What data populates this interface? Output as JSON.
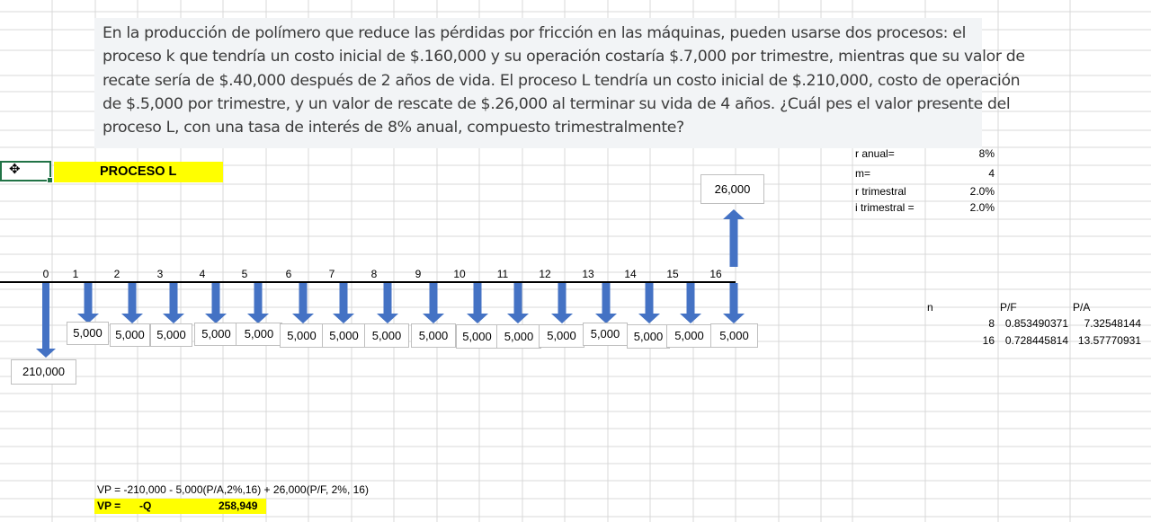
{
  "problem_lines": [
    "En la producción de polímero que reduce las pérdidas por fricción en las máquinas, pueden usarse dos procesos: el",
    "proceso k que tendría un costo inicial de $.160,000 y su operación costaría $.7,000 por trimestre, mientras que su valor de",
    "recate sería de $.40,000 después de 2 años de vida.  El proceso L tendría un costo inicial de $.210,000, costo de operación",
    "de $.5,000 por trimestre, y un valor de rescate de $.26,000 al terminar su vida de 4 años.  ¿Cuál pes el valor presente del",
    "proceso L, con una tasa de interés de 8% anual, compuesto trimestralmente?"
  ],
  "title": "PROCESO L",
  "cursor_glyph": "✥",
  "params": [
    {
      "label": "r anual=",
      "value": "8%"
    },
    {
      "label": "m=",
      "value": "4"
    },
    {
      "label": "r trimestral",
      "value": "2.0%"
    },
    {
      "label": "i trimestral  =",
      "value": "2.0%"
    }
  ],
  "factor_table": {
    "headers": [
      "n",
      "P/F",
      "P/A"
    ],
    "rows": [
      [
        "8",
        "0.853490371",
        "7.32548144"
      ],
      [
        "16",
        "0.728445814",
        "13.57770931"
      ]
    ]
  },
  "periods": [
    "0",
    "1",
    "2",
    "3",
    "4",
    "5",
    "6",
    "7",
    "8",
    "9",
    "10",
    "11",
    "12",
    "13",
    "14",
    "15",
    "16"
  ],
  "initial_cost": "210,000",
  "operating_cost": "5,000",
  "salvage": "26,000",
  "formula": "VP = -210,000 - 5,000(P/A,2%,16) + 26,000(P/F, 2%, 16)",
  "result": {
    "label": "VP =",
    "mid": "-Q",
    "value": "258,949"
  },
  "colors": {
    "arrow": "#4472c4",
    "highlight": "#ffff00",
    "selection": "#217346",
    "grid": "#d9d9d9"
  }
}
